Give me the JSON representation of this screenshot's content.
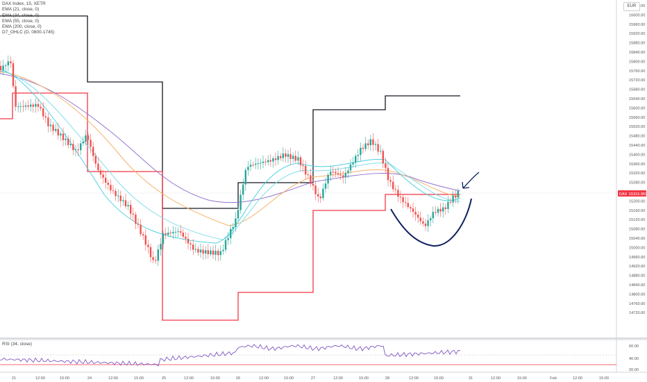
{
  "legend": {
    "title": "DAX Index, 15, XETR",
    "indicators": [
      "EMA (21, close, 0)",
      "EMA (34, close, 0)",
      "EMA (55, close, 0)",
      "EMA (200, close, 0)",
      "D7_OHLC (D, 0800-1745)"
    ]
  },
  "rsi": {
    "label": "RSI (34, close)",
    "ticks": [
      "60.00",
      "40.00",
      "20.00"
    ]
  },
  "currency": "EUR",
  "price_ticks": [
    "16680.00",
    "16600.00",
    "15960.00",
    "15920.00",
    "15880.00",
    "15840.00",
    "15800.00",
    "15760.00",
    "15720.00",
    "15680.00",
    "15640.00",
    "15600.00",
    "15560.00",
    "15520.00",
    "15480.00",
    "15440.00",
    "15400.00",
    "15360.00",
    "15320.00",
    "15280.00",
    "15240.00",
    "15200.00",
    "15160.00",
    "15120.00",
    "15080.00",
    "15040.00",
    "15000.00",
    "14960.00",
    "14920.00",
    "14880.00",
    "14840.00",
    "14800.00",
    "14760.00",
    "14720.00"
  ],
  "current_price": {
    "symbol": "DAX",
    "value": "15316.950"
  },
  "time_ticks": [
    "21",
    "12:00",
    "15:00",
    "24",
    "12:00",
    "15:00",
    "25",
    "12:00",
    "15:00",
    "26",
    "12:00",
    "15:00",
    "27",
    "12:00",
    "15:00",
    "28",
    "12:00",
    "15:00",
    "31",
    "12:00",
    "15:00",
    "Feb",
    "12:00",
    "15:00"
  ],
  "colors": {
    "candle_up": "#26a69a",
    "candle_down": "#ef5350",
    "ohlc_high": "#131722",
    "ohlc_low": "#f23645",
    "ema21": "#4dd0e1",
    "ema34": "#80deea",
    "ema55": "#f6b26b",
    "ema200": "#9575cd",
    "rsi_line": "#7e57c2",
    "annotation": "#0d1f5c"
  }
}
